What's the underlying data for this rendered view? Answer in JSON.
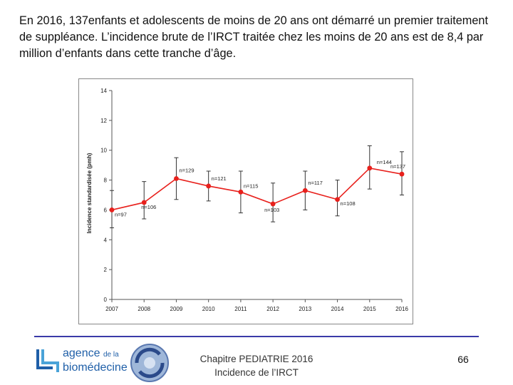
{
  "intro_text": "En 2016, 137enfants et adolescents de moins de 20 ans ont démarré un premier traitement de suppléance. L’incidence brute de l’IRCT traitée chez les moins de 20 ans est de 8,4 par million d’enfants dans cette tranche d’âge.",
  "chart_data": {
    "type": "line",
    "ylabel": "Incidence standardisée (pmh)",
    "xlabel": "",
    "title": "",
    "categories": [
      "2007",
      "2008",
      "2009",
      "2010",
      "2011",
      "2012",
      "2013",
      "2014",
      "2015",
      "2016"
    ],
    "values": [
      6.0,
      6.5,
      8.1,
      7.6,
      7.2,
      6.4,
      7.3,
      6.7,
      8.8,
      8.4
    ],
    "ci_low": [
      4.8,
      5.4,
      6.7,
      6.6,
      5.8,
      5.2,
      6.0,
      5.6,
      7.4,
      7.0
    ],
    "ci_high": [
      7.3,
      7.9,
      9.5,
      8.6,
      8.6,
      7.8,
      8.6,
      8.0,
      10.3,
      9.9
    ],
    "labels": [
      "n=97",
      "n=106",
      "n=129",
      "n=121",
      "n=115",
      "n=103",
      "n=117",
      "n=108",
      "n=144",
      "n=137"
    ],
    "ylim": [
      0,
      14
    ],
    "yticks": [
      "0",
      "2",
      "4",
      "6",
      "8",
      "10",
      "12",
      "14"
    ],
    "grid": false,
    "line_color": "#e8201c",
    "errorbar_color": "#333333"
  },
  "footer": {
    "logo_line1": "agence",
    "logo_line1_small": "de la",
    "logo_line2": "biomédecine",
    "center_line1": "Chapitre PEDIATRIE 2016",
    "center_line2": "Incidence de l’IRCT",
    "page_number": "66"
  },
  "colors": {
    "divider": "#3a3aa8",
    "brand_blue": "#1f5fa8"
  }
}
